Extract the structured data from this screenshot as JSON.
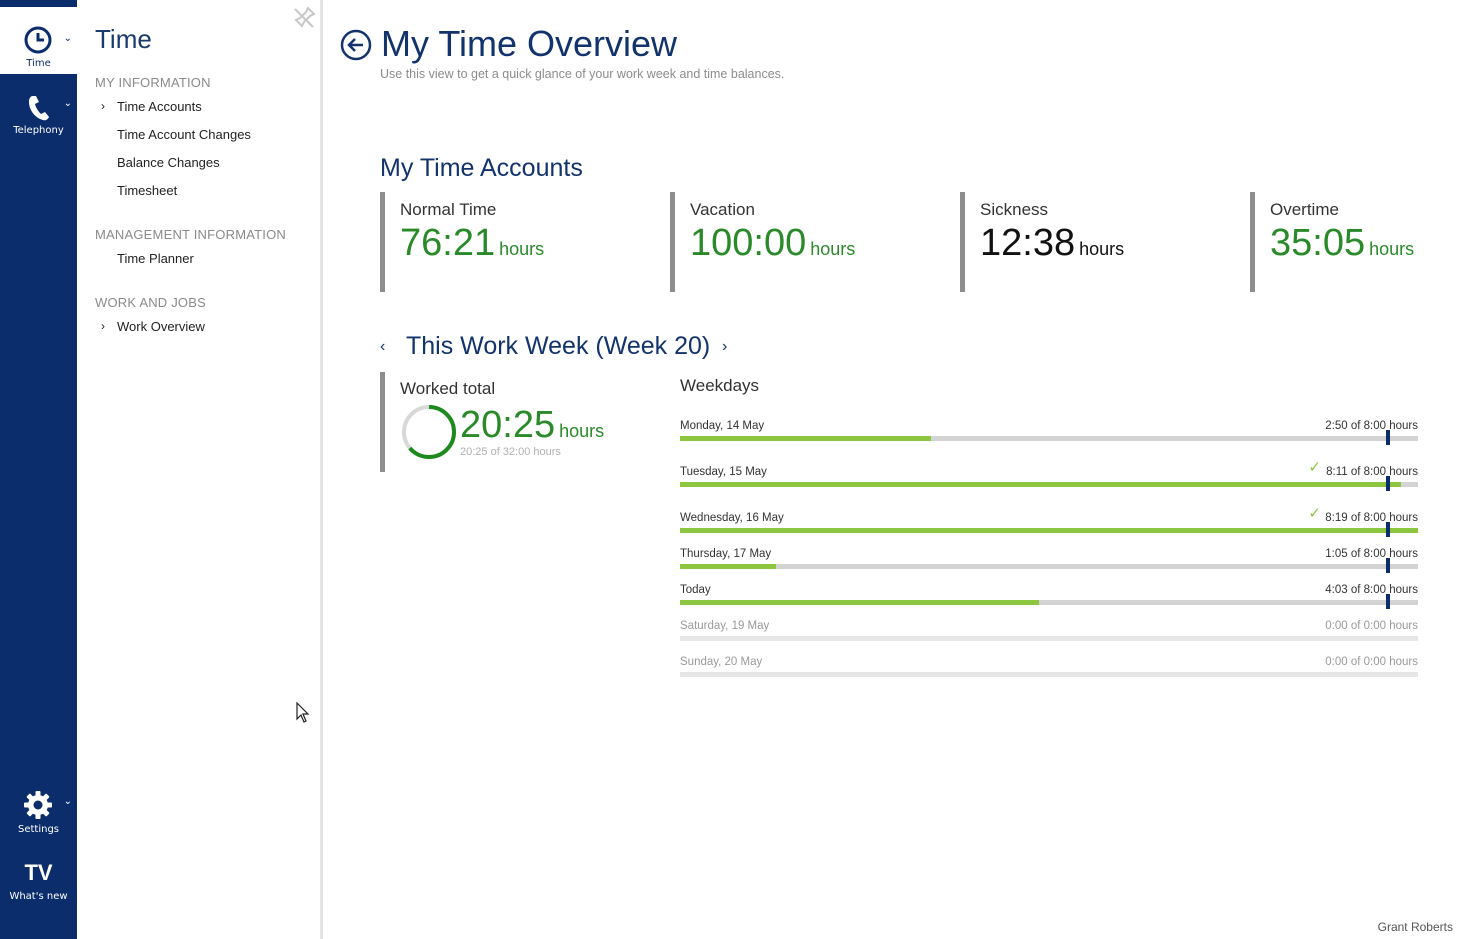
{
  "rail": {
    "time_label": "Time",
    "telephony_label": "Telephony",
    "settings_label": "Settings",
    "whatsnew_label": "What's new",
    "whatsnew_glyph": "TV",
    "chevron": "⌄",
    "accent_color": "#0c2d6b"
  },
  "nav": {
    "title": "Time",
    "sections": [
      {
        "label": "MY INFORMATION"
      },
      {
        "label": "MANAGEMENT INFORMATION"
      },
      {
        "label": "WORK AND JOBS"
      }
    ],
    "items": [
      {
        "label": "Time Accounts",
        "chevron": "›"
      },
      {
        "label": "Time Account Changes"
      },
      {
        "label": "Balance Changes"
      },
      {
        "label": "Timesheet"
      },
      {
        "label": "Time Planner"
      },
      {
        "label": "Work Overview",
        "chevron": "›"
      }
    ]
  },
  "header": {
    "title": "My Time Overview",
    "subtitle": "Use this view to get a quick glance of your work week and time balances."
  },
  "accounts": {
    "title": "My Time Accounts",
    "unit": "hours",
    "cards": [
      {
        "name": "Normal Time",
        "value": "76:21",
        "color": "#2a8a2a"
      },
      {
        "name": "Vacation",
        "value": "100:00",
        "color": "#2a8a2a"
      },
      {
        "name": "Sickness",
        "value": "12:38",
        "color": "#111111"
      },
      {
        "name": "Overtime",
        "value": "35:05",
        "color": "#2a8a2a"
      }
    ]
  },
  "week": {
    "title": "This Work Week (Week 20)",
    "prev": "‹",
    "next": "›",
    "worked_label": "Worked total",
    "worked_value": "20:25",
    "worked_unit": "hours",
    "worked_sub": "20:25 of 32:00 hours",
    "worked_fraction": 0.638,
    "weekdays_label": "Weekdays",
    "days": [
      {
        "name": "Monday, 14 May",
        "hours": "2:50 of 8:00 hours",
        "fill": 0.34,
        "marker": true,
        "check": false,
        "dim": false
      },
      {
        "name": "Tuesday, 15 May",
        "hours": "8:11 of 8:00 hours",
        "fill": 0.977,
        "marker": true,
        "check": true,
        "dim": false
      },
      {
        "name": "Wednesday, 16 May",
        "hours": "8:19 of 8:00 hours",
        "fill": 1.0,
        "marker": true,
        "check": true,
        "dim": false
      },
      {
        "name": "Thursday, 17 May",
        "hours": "1:05 of 8:00 hours",
        "fill": 0.13,
        "marker": true,
        "check": false,
        "dim": false
      },
      {
        "name": "Today",
        "hours": "4:03 of 8:00 hours",
        "fill": 0.487,
        "marker": true,
        "check": false,
        "dim": false
      },
      {
        "name": "Saturday, 19 May",
        "hours": "0:00 of 0:00 hours",
        "fill": 0,
        "marker": false,
        "check": false,
        "dim": true
      },
      {
        "name": "Sunday, 20 May",
        "hours": "0:00 of 0:00 hours",
        "fill": 0,
        "marker": false,
        "check": false,
        "dim": true
      }
    ]
  },
  "footer": {
    "user": "Grant Roberts"
  }
}
